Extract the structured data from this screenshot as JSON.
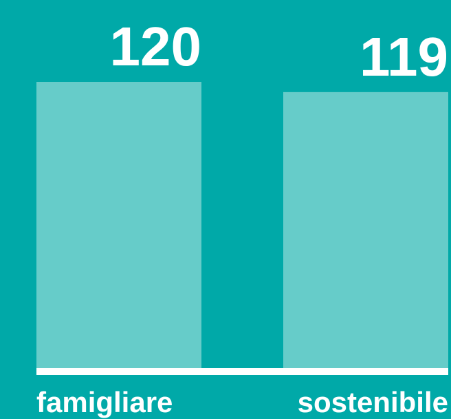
{
  "chart_data": {
    "type": "bar",
    "categories": [
      "famigliare",
      "sostenibile"
    ],
    "values": [
      120,
      119
    ],
    "color": "#66ccc9",
    "background": "#00a9a8",
    "ylim": [
      92,
      120
    ]
  }
}
